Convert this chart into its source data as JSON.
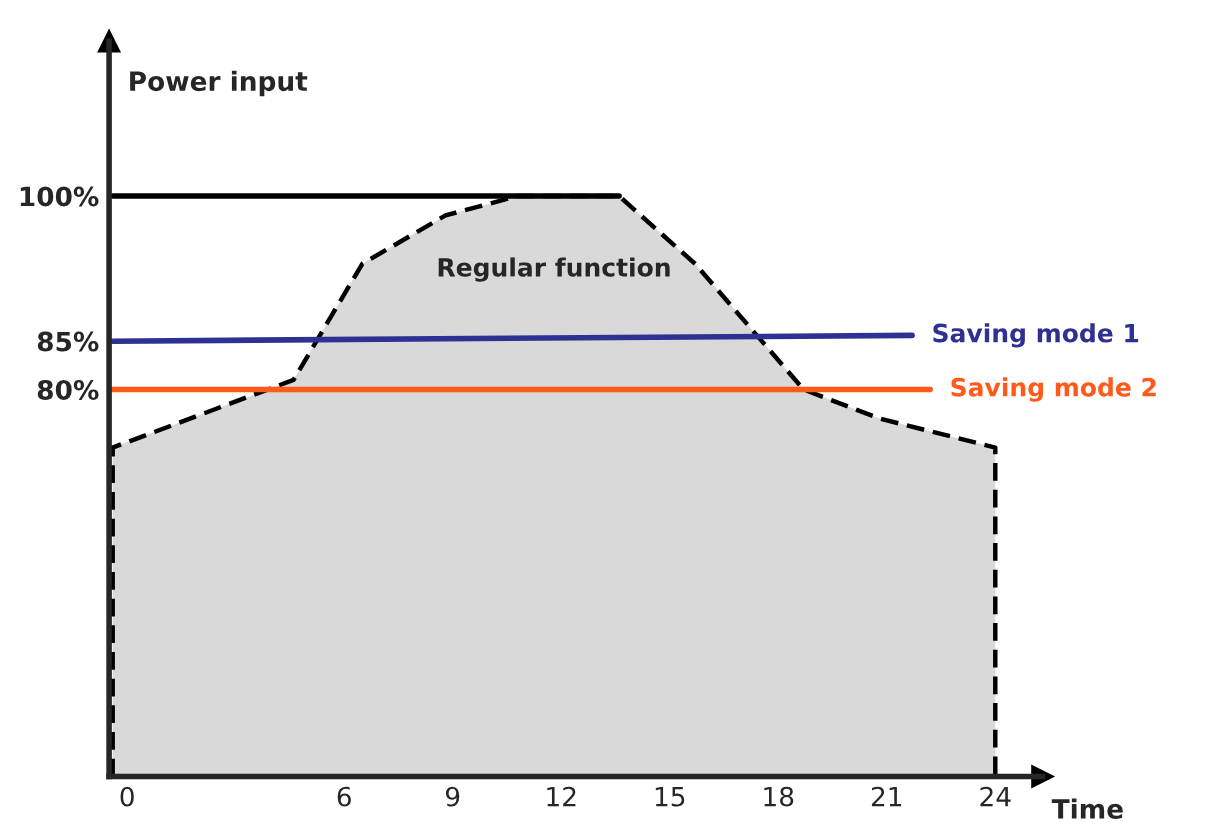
{
  "chart_data": {
    "type": "line",
    "xlabel": "Time",
    "ylabel": "Power input",
    "xlim": [
      -0.5,
      25.3
    ],
    "xticks": [
      0,
      6,
      9,
      12,
      15,
      18,
      21,
      24
    ],
    "ylim": [
      40,
      116
    ],
    "yticks": [
      {
        "value": 80,
        "label": "80%"
      },
      {
        "value": 85,
        "label": "85%"
      },
      {
        "value": 100,
        "label": "100%"
      }
    ],
    "grid": false,
    "legend": false,
    "series": [
      {
        "type": "area",
        "name": "Regular function",
        "color": "#d9d9d9",
        "line_style": "dashed",
        "x": [
          -0.4,
          4.6,
          6.5,
          8.8,
          10.8,
          13.6,
          15.7,
          18.7,
          20.8,
          24
        ],
        "values": [
          74,
          81,
          93,
          98,
          100,
          100,
          93,
          80,
          77,
          74
        ]
      },
      {
        "color": "#000000",
        "line_style": "solid",
        "x": [
          -0.4,
          13.6
        ],
        "values": [
          100,
          100
        ]
      },
      {
        "name": "Saving mode 1",
        "color": "#2e3192",
        "line_style": "solid",
        "x": [
          -0.4,
          21.7
        ],
        "values": [
          85,
          85.6
        ]
      },
      {
        "name": "Saving mode 2",
        "color": "#ff5a1a",
        "line_style": "solid",
        "x": [
          -0.4,
          22.2
        ],
        "values": [
          80,
          80
        ]
      }
    ]
  }
}
